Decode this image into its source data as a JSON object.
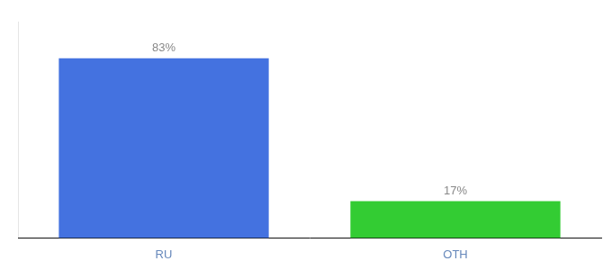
{
  "chart_data": {
    "type": "bar",
    "categories": [
      "RU",
      "OTH"
    ],
    "values": [
      83,
      17
    ],
    "value_labels": [
      "83%",
      "17%"
    ],
    "colors": [
      "#4472e0",
      "#33cc33"
    ],
    "ylim": [
      0,
      100
    ],
    "grid": false,
    "data_labels": true,
    "tick_labels": "x"
  }
}
